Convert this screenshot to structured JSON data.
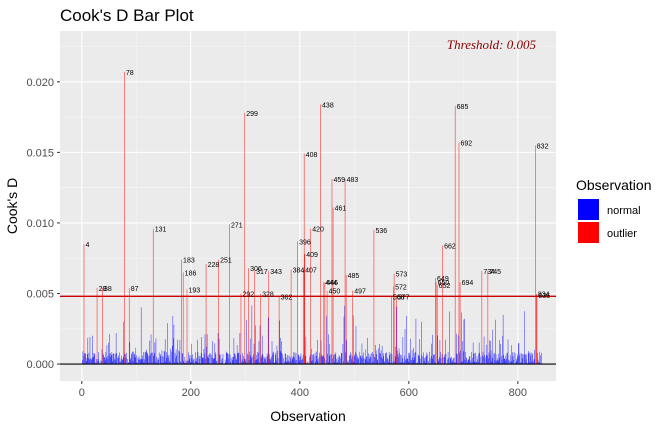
{
  "chart_data": {
    "type": "bar",
    "title": "Cook's D Bar Plot",
    "xlabel": "Observation",
    "ylabel": "Cook's D",
    "xlim": [
      -40,
      870
    ],
    "ylim": [
      -0.0012,
      0.0236
    ],
    "x_ticks": [
      0,
      200,
      400,
      600,
      800
    ],
    "x_tick_labels": [
      "0",
      "200",
      "400",
      "600",
      "800"
    ],
    "y_ticks": [
      0.0,
      0.005,
      0.01,
      0.015,
      0.02
    ],
    "y_tick_labels": [
      "0.000",
      "0.005",
      "0.010",
      "0.015",
      "0.020"
    ],
    "threshold": 0.0048,
    "threshold_label": "Threshold: 0.005",
    "grid": true,
    "legend": {
      "title": "Observation",
      "position": "right",
      "entries": [
        {
          "name": "normal",
          "color": "#0000ff"
        },
        {
          "name": "outlier",
          "color": "#ff0000"
        }
      ]
    },
    "outliers": [
      {
        "obs": 4,
        "d": 0.0085,
        "label": "4"
      },
      {
        "obs": 28,
        "d": 0.0054,
        "label": "28"
      },
      {
        "obs": 38,
        "d": 0.0054,
        "label": "38"
      },
      {
        "obs": 78,
        "d": 0.0207,
        "label": "78"
      },
      {
        "obs": 87,
        "d": 0.0054,
        "label": "87"
      },
      {
        "obs": 131,
        "d": 0.0096,
        "label": "131"
      },
      {
        "obs": 183,
        "d": 0.0074,
        "label": "183"
      },
      {
        "obs": 186,
        "d": 0.0065,
        "label": "186"
      },
      {
        "obs": 193,
        "d": 0.0053,
        "label": "193"
      },
      {
        "obs": 228,
        "d": 0.0071,
        "label": "228"
      },
      {
        "obs": 251,
        "d": 0.0074,
        "label": "251"
      },
      {
        "obs": 271,
        "d": 0.0099,
        "label": "271"
      },
      {
        "obs": 292,
        "d": 0.005,
        "label": "292"
      },
      {
        "obs": 299,
        "d": 0.0178,
        "label": "299"
      },
      {
        "obs": 306,
        "d": 0.0068,
        "label": "306"
      },
      {
        "obs": 317,
        "d": 0.0066,
        "label": "317"
      },
      {
        "obs": 328,
        "d": 0.005,
        "label": "328"
      },
      {
        "obs": 343,
        "d": 0.0066,
        "label": "343"
      },
      {
        "obs": 362,
        "d": 0.0048,
        "label": "362"
      },
      {
        "obs": 384,
        "d": 0.0067,
        "label": "384"
      },
      {
        "obs": 396,
        "d": 0.0087,
        "label": "396"
      },
      {
        "obs": 407,
        "d": 0.0067,
        "label": "407"
      },
      {
        "obs": 408,
        "d": 0.0149,
        "label": "408"
      },
      {
        "obs": 409,
        "d": 0.0078,
        "label": "409"
      },
      {
        "obs": 420,
        "d": 0.0096,
        "label": "420"
      },
      {
        "obs": 438,
        "d": 0.0184,
        "label": "438"
      },
      {
        "obs": 444,
        "d": 0.0058,
        "label": "444"
      },
      {
        "obs": 446,
        "d": 0.0058,
        "label": "446"
      },
      {
        "obs": 450,
        "d": 0.0052,
        "label": "450"
      },
      {
        "obs": 459,
        "d": 0.0131,
        "label": "459"
      },
      {
        "obs": 461,
        "d": 0.0111,
        "label": "461"
      },
      {
        "obs": 483,
        "d": 0.0131,
        "label": "483"
      },
      {
        "obs": 485,
        "d": 0.0063,
        "label": "485"
      },
      {
        "obs": 497,
        "d": 0.0052,
        "label": "497"
      },
      {
        "obs": 536,
        "d": 0.0095,
        "label": "536"
      },
      {
        "obs": 568,
        "d": 0.0048,
        "label": "568"
      },
      {
        "obs": 572,
        "d": 0.0055,
        "label": "572"
      },
      {
        "obs": 573,
        "d": 0.0064,
        "label": "573"
      },
      {
        "obs": 577,
        "d": 0.0048,
        "label": "577"
      },
      {
        "obs": 649,
        "d": 0.0061,
        "label": "649"
      },
      {
        "obs": 650,
        "d": 0.0058,
        "label": "650"
      },
      {
        "obs": 652,
        "d": 0.0056,
        "label": "652"
      },
      {
        "obs": 662,
        "d": 0.0084,
        "label": "662"
      },
      {
        "obs": 685,
        "d": 0.0183,
        "label": "685"
      },
      {
        "obs": 692,
        "d": 0.0157,
        "label": "692"
      },
      {
        "obs": 694,
        "d": 0.0058,
        "label": "694"
      },
      {
        "obs": 734,
        "d": 0.0066,
        "label": "734"
      },
      {
        "obs": 745,
        "d": 0.0066,
        "label": "745"
      },
      {
        "obs": 832,
        "d": 0.0155,
        "label": "832"
      },
      {
        "obs": 834,
        "d": 0.005,
        "label": "834"
      },
      {
        "obs": 835,
        "d": 0.0049,
        "label": "835"
      }
    ]
  }
}
